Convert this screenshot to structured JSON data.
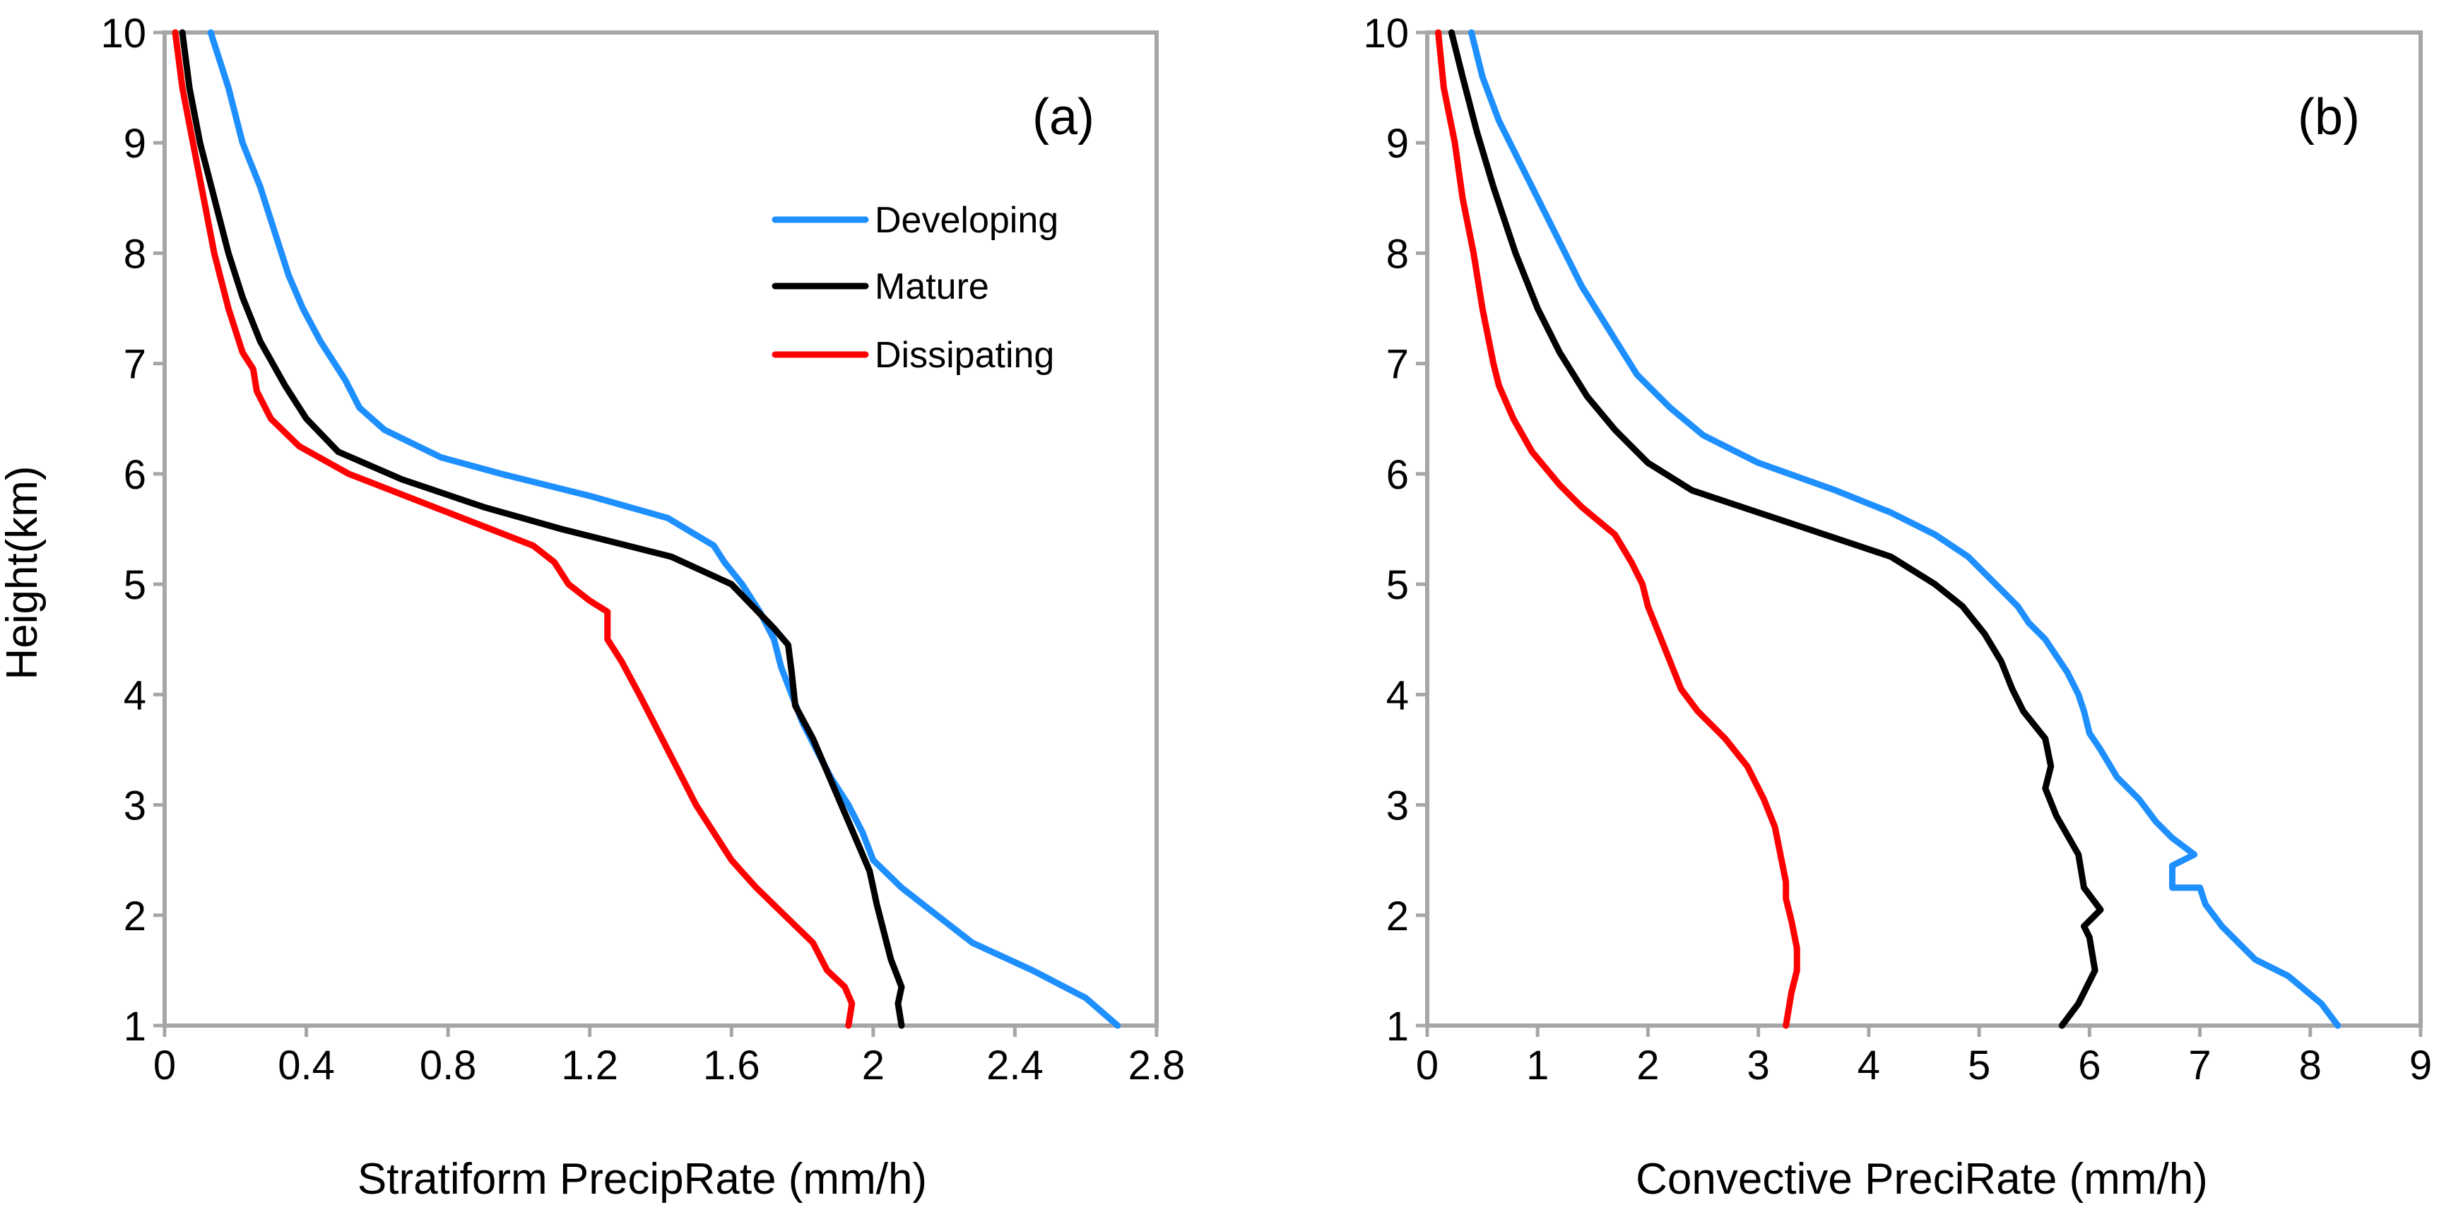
{
  "figure": {
    "ylabel": "Height(km)",
    "legend": {
      "placement": "upper-right of panel (a)",
      "entries": [
        {
          "name": "Developing",
          "color": "#1e8fff"
        },
        {
          "name": "Mature",
          "color": "#000000"
        },
        {
          "name": "Dissipating",
          "color": "#ff0000"
        }
      ]
    }
  },
  "chart_data": [
    {
      "type": "line",
      "panel_label": "(a)",
      "title": "",
      "xlabel": "Stratiform PrecipRate (mm/h)",
      "ylabel": "Height(km)",
      "xlim": [
        0,
        2.8
      ],
      "ylim": [
        1,
        10
      ],
      "xticks": [
        "0",
        "0.4",
        "0.8",
        "1.2",
        "1.6",
        "2",
        "2.4",
        "2.8"
      ],
      "yticks": [
        "1",
        "2",
        "3",
        "4",
        "5",
        "6",
        "7",
        "8",
        "9",
        "10"
      ],
      "grid": false,
      "series": [
        {
          "name": "Developing",
          "color": "#1e8fff",
          "points": [
            [
              2.69,
              1.0
            ],
            [
              2.6,
              1.25
            ],
            [
              2.45,
              1.5
            ],
            [
              2.28,
              1.75
            ],
            [
              2.18,
              2.0
            ],
            [
              2.08,
              2.25
            ],
            [
              2.0,
              2.5
            ],
            [
              1.97,
              2.75
            ],
            [
              1.93,
              3.0
            ],
            [
              1.88,
              3.25
            ],
            [
              1.84,
              3.5
            ],
            [
              1.8,
              3.75
            ],
            [
              1.77,
              4.0
            ],
            [
              1.74,
              4.25
            ],
            [
              1.72,
              4.5
            ],
            [
              1.68,
              4.75
            ],
            [
              1.63,
              5.0
            ],
            [
              1.58,
              5.2
            ],
            [
              1.55,
              5.35
            ],
            [
              1.42,
              5.6
            ],
            [
              1.2,
              5.8
            ],
            [
              0.95,
              6.0
            ],
            [
              0.78,
              6.15
            ],
            [
              0.62,
              6.4
            ],
            [
              0.55,
              6.6
            ],
            [
              0.51,
              6.85
            ],
            [
              0.48,
              7.0
            ],
            [
              0.44,
              7.2
            ],
            [
              0.39,
              7.5
            ],
            [
              0.35,
              7.8
            ],
            [
              0.31,
              8.2
            ],
            [
              0.27,
              8.6
            ],
            [
              0.22,
              9.0
            ],
            [
              0.18,
              9.5
            ],
            [
              0.13,
              10.0
            ]
          ]
        },
        {
          "name": "Mature",
          "color": "#000000",
          "points": [
            [
              2.08,
              1.0
            ],
            [
              2.07,
              1.2
            ],
            [
              2.08,
              1.35
            ],
            [
              2.05,
              1.6
            ],
            [
              2.03,
              1.85
            ],
            [
              2.01,
              2.1
            ],
            [
              1.99,
              2.4
            ],
            [
              1.95,
              2.7
            ],
            [
              1.91,
              3.0
            ],
            [
              1.87,
              3.3
            ],
            [
              1.83,
              3.6
            ],
            [
              1.78,
              3.9
            ],
            [
              1.77,
              4.2
            ],
            [
              1.76,
              4.45
            ],
            [
              1.72,
              4.6
            ],
            [
              1.66,
              4.8
            ],
            [
              1.6,
              5.0
            ],
            [
              1.43,
              5.25
            ],
            [
              1.12,
              5.5
            ],
            [
              0.9,
              5.7
            ],
            [
              0.67,
              5.95
            ],
            [
              0.49,
              6.2
            ],
            [
              0.4,
              6.5
            ],
            [
              0.34,
              6.8
            ],
            [
              0.27,
              7.2
            ],
            [
              0.22,
              7.6
            ],
            [
              0.18,
              8.0
            ],
            [
              0.14,
              8.5
            ],
            [
              0.1,
              9.0
            ],
            [
              0.07,
              9.5
            ],
            [
              0.05,
              10.0
            ]
          ]
        },
        {
          "name": "Dissipating",
          "color": "#ff0000",
          "points": [
            [
              1.93,
              1.0
            ],
            [
              1.94,
              1.2
            ],
            [
              1.92,
              1.35
            ],
            [
              1.87,
              1.5
            ],
            [
              1.83,
              1.75
            ],
            [
              1.75,
              2.0
            ],
            [
              1.67,
              2.25
            ],
            [
              1.6,
              2.5
            ],
            [
              1.55,
              2.75
            ],
            [
              1.5,
              3.0
            ],
            [
              1.46,
              3.25
            ],
            [
              1.42,
              3.5
            ],
            [
              1.38,
              3.75
            ],
            [
              1.34,
              4.0
            ],
            [
              1.29,
              4.3
            ],
            [
              1.25,
              4.5
            ],
            [
              1.25,
              4.75
            ],
            [
              1.2,
              4.85
            ],
            [
              1.14,
              5.0
            ],
            [
              1.1,
              5.2
            ],
            [
              1.04,
              5.35
            ],
            [
              0.92,
              5.5
            ],
            [
              0.72,
              5.75
            ],
            [
              0.52,
              6.0
            ],
            [
              0.38,
              6.25
            ],
            [
              0.3,
              6.5
            ],
            [
              0.26,
              6.75
            ],
            [
              0.25,
              6.95
            ],
            [
              0.22,
              7.1
            ],
            [
              0.18,
              7.5
            ],
            [
              0.14,
              8.0
            ],
            [
              0.11,
              8.5
            ],
            [
              0.08,
              9.0
            ],
            [
              0.05,
              9.5
            ],
            [
              0.03,
              10.0
            ]
          ]
        }
      ]
    },
    {
      "type": "line",
      "panel_label": "(b)",
      "title": "",
      "xlabel": "Convective PreciRate (mm/h)",
      "ylabel": "",
      "xlim": [
        0,
        9
      ],
      "ylim": [
        1,
        10
      ],
      "xticks": [
        "0",
        "1",
        "2",
        "3",
        "4",
        "5",
        "6",
        "7",
        "8",
        "9"
      ],
      "yticks": [
        "1",
        "2",
        "3",
        "4",
        "5",
        "6",
        "7",
        "8",
        "9",
        "10"
      ],
      "grid": false,
      "series": [
        {
          "name": "Developing",
          "color": "#1e8fff",
          "points": [
            [
              8.25,
              1.0
            ],
            [
              8.1,
              1.2
            ],
            [
              7.8,
              1.45
            ],
            [
              7.5,
              1.6
            ],
            [
              7.2,
              1.9
            ],
            [
              7.05,
              2.1
            ],
            [
              7.0,
              2.25
            ],
            [
              6.75,
              2.25
            ],
            [
              6.75,
              2.45
            ],
            [
              6.95,
              2.55
            ],
            [
              6.75,
              2.7
            ],
            [
              6.6,
              2.85
            ],
            [
              6.45,
              3.05
            ],
            [
              6.25,
              3.25
            ],
            [
              6.1,
              3.5
            ],
            [
              6.0,
              3.65
            ],
            [
              5.95,
              3.85
            ],
            [
              5.9,
              4.0
            ],
            [
              5.8,
              4.2
            ],
            [
              5.7,
              4.35
            ],
            [
              5.6,
              4.5
            ],
            [
              5.45,
              4.65
            ],
            [
              5.35,
              4.8
            ],
            [
              5.15,
              5.0
            ],
            [
              4.9,
              5.25
            ],
            [
              4.6,
              5.45
            ],
            [
              4.2,
              5.65
            ],
            [
              3.7,
              5.85
            ],
            [
              3.0,
              6.1
            ],
            [
              2.5,
              6.35
            ],
            [
              2.2,
              6.6
            ],
            [
              1.9,
              6.9
            ],
            [
              1.65,
              7.3
            ],
            [
              1.4,
              7.7
            ],
            [
              1.15,
              8.2
            ],
            [
              0.9,
              8.7
            ],
            [
              0.65,
              9.2
            ],
            [
              0.5,
              9.6
            ],
            [
              0.4,
              10.0
            ]
          ]
        },
        {
          "name": "Mature",
          "color": "#000000",
          "points": [
            [
              5.75,
              1.0
            ],
            [
              5.9,
              1.2
            ],
            [
              6.05,
              1.5
            ],
            [
              6.0,
              1.8
            ],
            [
              5.95,
              1.9
            ],
            [
              6.1,
              2.05
            ],
            [
              5.95,
              2.25
            ],
            [
              5.9,
              2.55
            ],
            [
              5.7,
              2.9
            ],
            [
              5.6,
              3.15
            ],
            [
              5.65,
              3.35
            ],
            [
              5.6,
              3.6
            ],
            [
              5.4,
              3.85
            ],
            [
              5.3,
              4.05
            ],
            [
              5.2,
              4.3
            ],
            [
              5.05,
              4.55
            ],
            [
              4.85,
              4.8
            ],
            [
              4.6,
              5.0
            ],
            [
              4.2,
              5.25
            ],
            [
              3.6,
              5.45
            ],
            [
              3.0,
              5.65
            ],
            [
              2.4,
              5.85
            ],
            [
              2.0,
              6.1
            ],
            [
              1.7,
              6.4
            ],
            [
              1.45,
              6.7
            ],
            [
              1.2,
              7.1
            ],
            [
              1.0,
              7.5
            ],
            [
              0.8,
              8.0
            ],
            [
              0.6,
              8.6
            ],
            [
              0.45,
              9.1
            ],
            [
              0.32,
              9.6
            ],
            [
              0.22,
              10.0
            ]
          ]
        },
        {
          "name": "Dissipating",
          "color": "#ff0000",
          "points": [
            [
              3.25,
              1.0
            ],
            [
              3.3,
              1.3
            ],
            [
              3.35,
              1.5
            ],
            [
              3.35,
              1.7
            ],
            [
              3.3,
              1.95
            ],
            [
              3.25,
              2.15
            ],
            [
              3.25,
              2.3
            ],
            [
              3.2,
              2.55
            ],
            [
              3.15,
              2.8
            ],
            [
              3.05,
              3.05
            ],
            [
              2.9,
              3.35
            ],
            [
              2.7,
              3.6
            ],
            [
              2.45,
              3.85
            ],
            [
              2.3,
              4.05
            ],
            [
              2.2,
              4.3
            ],
            [
              2.1,
              4.55
            ],
            [
              2.0,
              4.8
            ],
            [
              1.95,
              5.0
            ],
            [
              1.85,
              5.2
            ],
            [
              1.7,
              5.45
            ],
            [
              1.4,
              5.7
            ],
            [
              1.2,
              5.9
            ],
            [
              0.95,
              6.2
            ],
            [
              0.78,
              6.5
            ],
            [
              0.65,
              6.8
            ],
            [
              0.6,
              7.0
            ],
            [
              0.5,
              7.5
            ],
            [
              0.42,
              8.0
            ],
            [
              0.32,
              8.5
            ],
            [
              0.25,
              9.0
            ],
            [
              0.15,
              9.5
            ],
            [
              0.1,
              10.0
            ]
          ]
        }
      ]
    }
  ]
}
